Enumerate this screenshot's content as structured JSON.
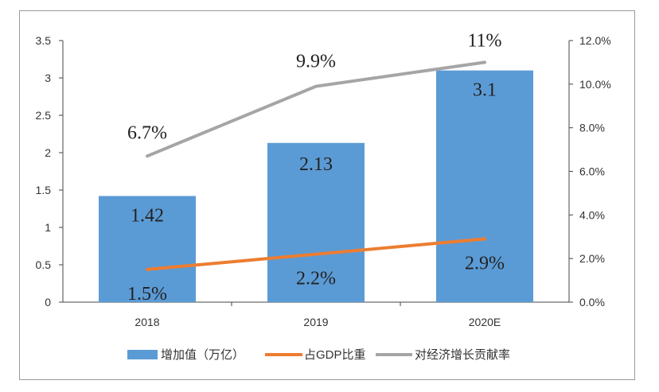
{
  "chart_data": {
    "type": "bar",
    "categories": [
      "2018",
      "2019",
      "2020E"
    ],
    "left_axis": {
      "ylim": [
        0,
        3.5
      ],
      "ticks": [
        "0",
        "0.5",
        "1",
        "1.5",
        "2",
        "2.5",
        "3",
        "3.5"
      ]
    },
    "right_axis": {
      "ylim": [
        0,
        12
      ],
      "ticks": [
        "0.0%",
        "2.0%",
        "4.0%",
        "6.0%",
        "8.0%",
        "10.0%",
        "12.0%"
      ]
    },
    "series": [
      {
        "name": "增加值（万亿）",
        "type": "bar",
        "axis": "left",
        "color": "#5b9bd5",
        "values": [
          1.42,
          2.13,
          3.1
        ],
        "labels": [
          "1.42",
          "2.13",
          "3.1"
        ]
      },
      {
        "name": "占GDP比重",
        "type": "line",
        "axis": "right",
        "color": "#ed7d31",
        "values": [
          1.5,
          2.2,
          2.9
        ],
        "labels": [
          "1.5%",
          "2.2%",
          "2.9%"
        ]
      },
      {
        "name": "对经济增长贡献率",
        "type": "line",
        "axis": "right",
        "color": "#a5a5a5",
        "values": [
          6.7,
          9.9,
          11
        ],
        "labels": [
          "6.7%",
          "9.9%",
          "11%"
        ]
      }
    ],
    "legend": "bottom"
  }
}
